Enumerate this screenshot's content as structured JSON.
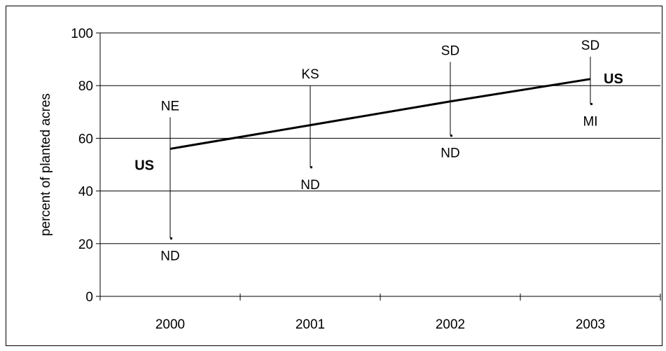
{
  "chart_data": {
    "type": "line",
    "title": "",
    "xlabel": "",
    "ylabel": "percent of planted acres",
    "categories": [
      "2000",
      "2001",
      "2002",
      "2003"
    ],
    "ylim": [
      0,
      100
    ],
    "yticks": [
      0,
      20,
      40,
      60,
      80,
      100
    ],
    "grid": true,
    "series": [
      {
        "name": "US",
        "values": [
          56,
          65,
          74,
          82.5
        ]
      }
    ],
    "ranges": [
      {
        "category": "2000",
        "high": 68,
        "low": 22,
        "high_label": "NE",
        "low_label": "ND"
      },
      {
        "category": "2001",
        "high": 80,
        "low": 49,
        "high_label": "KS",
        "low_label": "ND"
      },
      {
        "category": "2002",
        "high": 89,
        "low": 61,
        "high_label": "SD",
        "low_label": "ND"
      },
      {
        "category": "2003",
        "high": 91,
        "low": 73,
        "high_label": "SD",
        "low_label": "MI"
      }
    ],
    "annotations": [
      "US",
      "US"
    ]
  }
}
